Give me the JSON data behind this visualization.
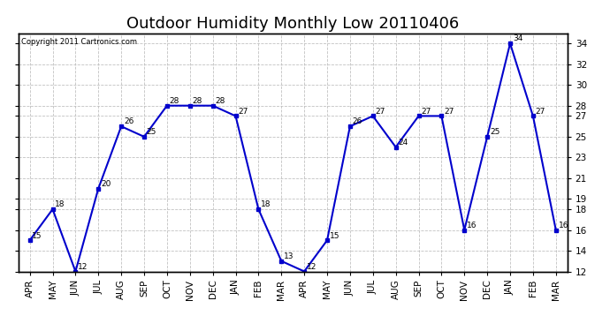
{
  "title": "Outdoor Humidity Monthly Low 20110406",
  "copyright": "Copyright 2011 Cartronics.com",
  "months": [
    "APR",
    "MAY",
    "JUN",
    "JUL",
    "AUG",
    "SEP",
    "OCT",
    "NOV",
    "DEC",
    "JAN",
    "FEB",
    "MAR",
    "APR",
    "MAY",
    "JUN",
    "JUL",
    "AUG",
    "SEP",
    "OCT",
    "NOV",
    "DEC",
    "JAN",
    "FEB",
    "MAR"
  ],
  "values": [
    15,
    18,
    12,
    20,
    26,
    25,
    28,
    28,
    28,
    27,
    18,
    13,
    12,
    15,
    26,
    27,
    24,
    27,
    27,
    16,
    25,
    34,
    27,
    16
  ],
  "ylim_min": 12,
  "ylim_max": 35,
  "yticks": [
    12,
    14,
    16,
    18,
    19,
    21,
    23,
    25,
    27,
    28,
    30,
    32,
    34
  ],
  "line_color": "#0000cc",
  "marker": "s",
  "marker_size": 3,
  "bg_color": "#ffffff",
  "grid_color": "#bbbbbb",
  "title_fontsize": 13,
  "label_fontsize": 7.5,
  "annotation_fontsize": 6.5,
  "figwidth": 6.9,
  "figheight": 3.75,
  "dpi": 100
}
